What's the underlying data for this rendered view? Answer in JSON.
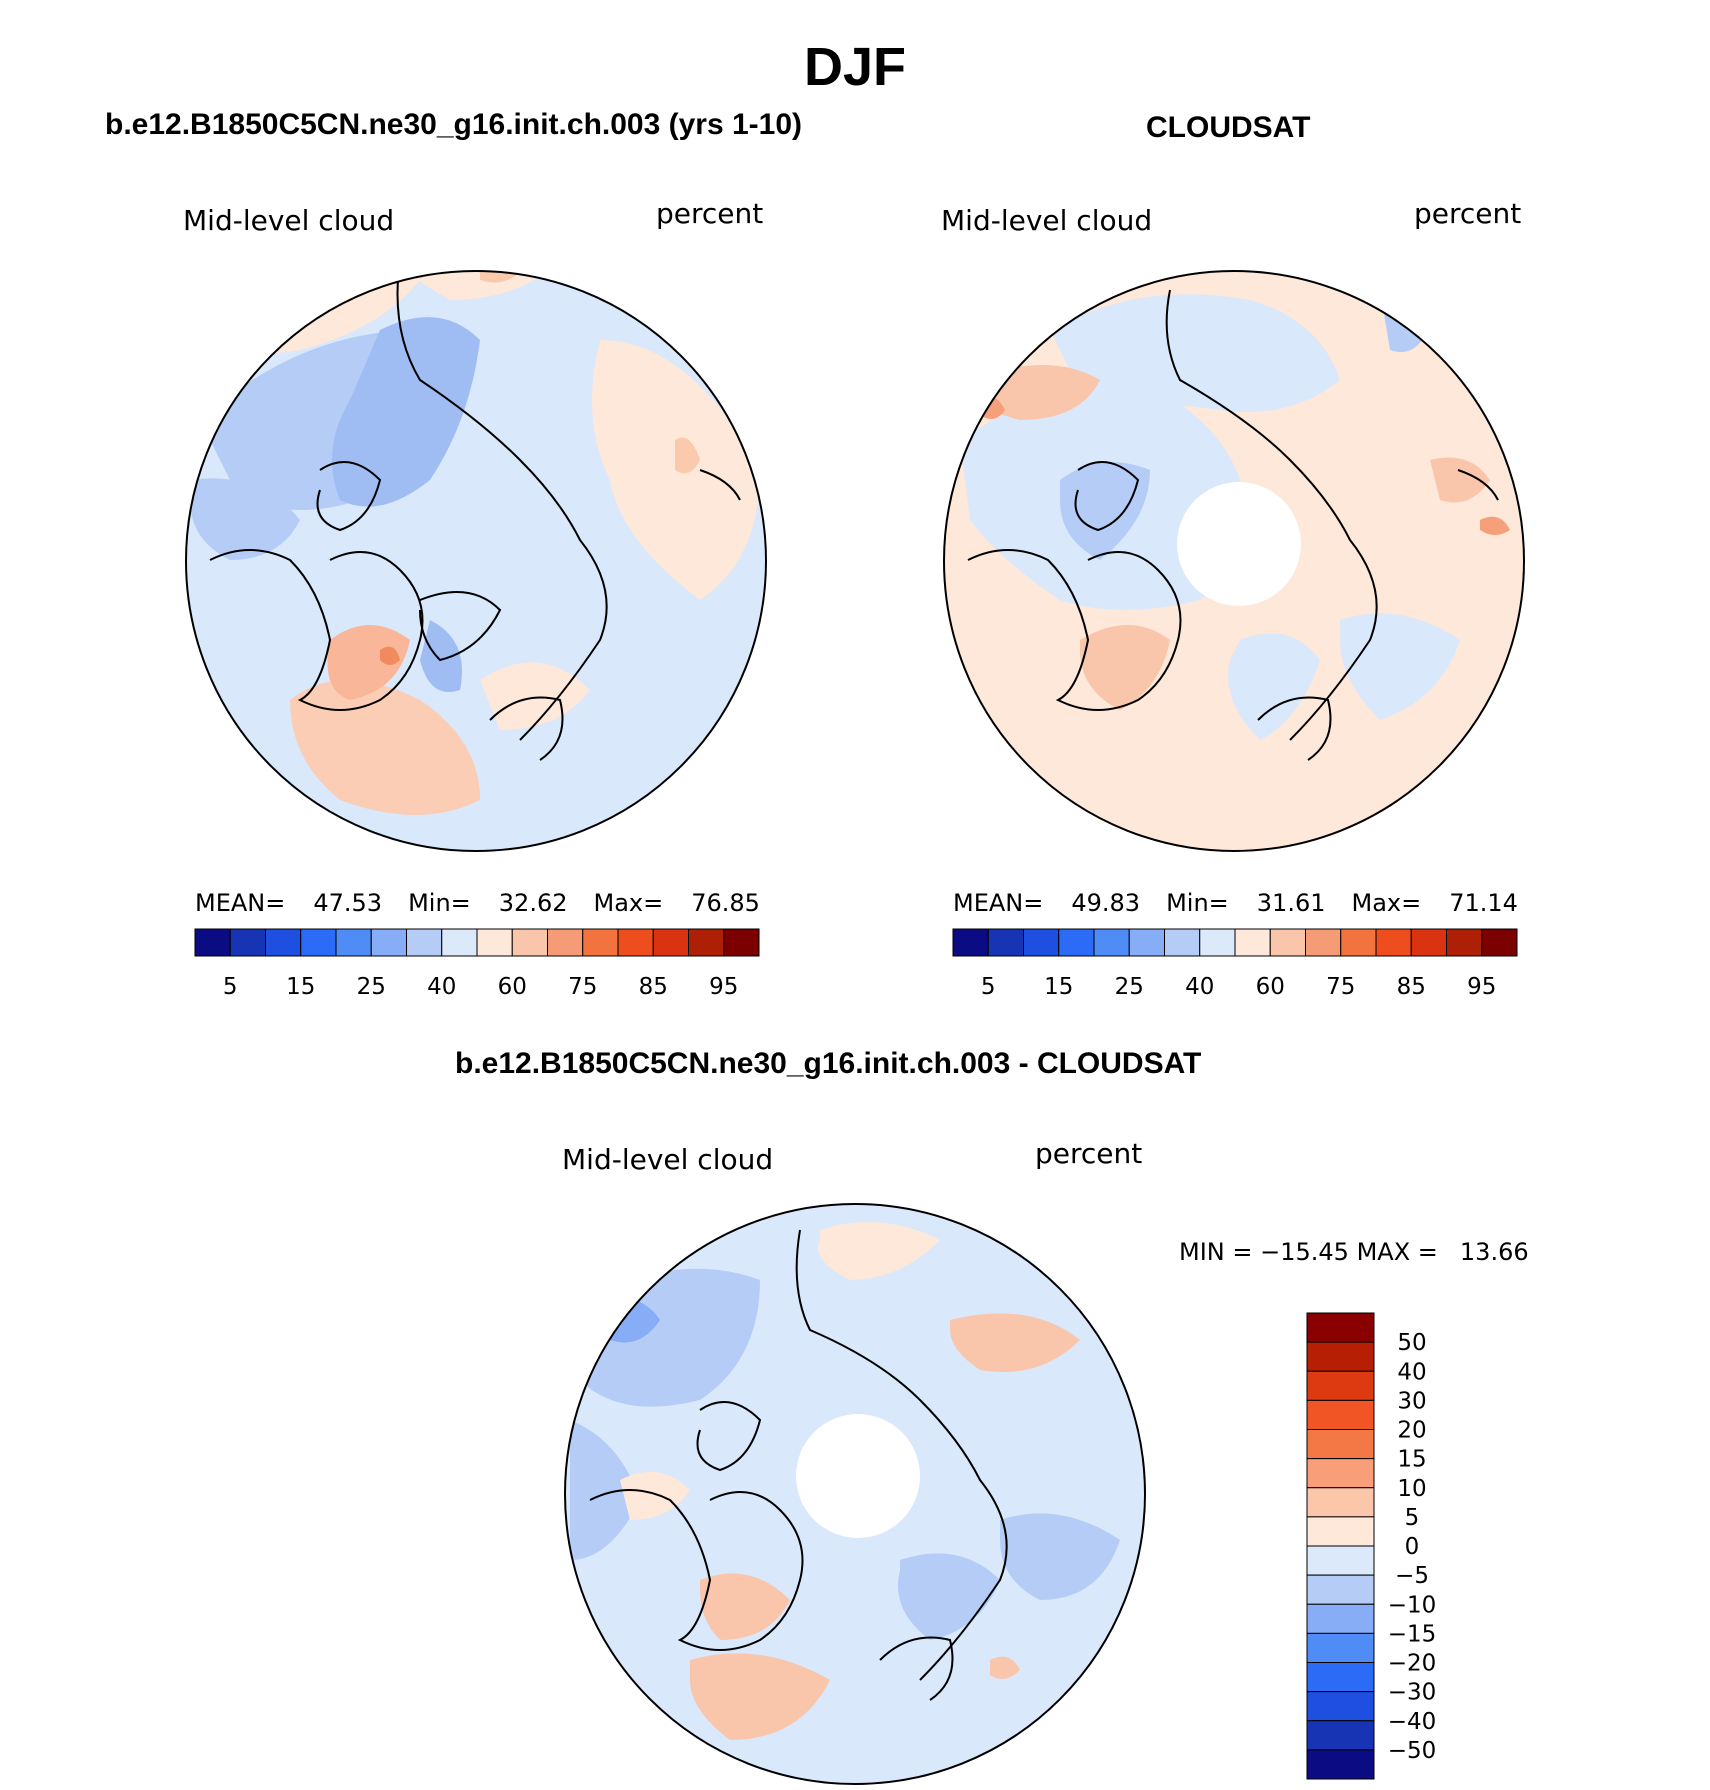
{
  "main_title": "DJF",
  "panels": [
    {
      "title": "b.e12.B1850C5CN.ne30_g16.init.ch.003 (yrs 1-10)",
      "variable": "Mid-level cloud",
      "units": "percent",
      "stats": {
        "mean_label": "MEAN=",
        "mean": "47.53",
        "min_label": "Min=",
        "min": "32.62",
        "max_label": "Max=",
        "max": "76.85"
      }
    },
    {
      "title": "CLOUDSAT",
      "variable": "Mid-level cloud",
      "units": "percent",
      "stats": {
        "mean_label": "MEAN=",
        "mean": "49.83",
        "min_label": "Min=",
        "min": "31.61",
        "max_label": "Max=",
        "max": "71.14"
      }
    }
  ],
  "diff_panel": {
    "title": "b.e12.B1850C5CN.ne30_g16.init.ch.003 - CLOUDSAT",
    "variable": "Mid-level cloud",
    "units": "percent",
    "min_label": "MIN =",
    "min": "−15.45",
    "max_label": "MAX =",
    "max": "13.66"
  },
  "chart_data": [
    {
      "type": "heatmap",
      "projection": "north polar stereographic",
      "title": "b.e12.B1850C5CN.ne30_g16.init.ch.003 (yrs 1-10)",
      "colorbar_orientation": "horizontal",
      "colorbar_tick_labels": [
        "5",
        "15",
        "25",
        "40",
        "60",
        "75",
        "85",
        "95"
      ],
      "colorbar_colors": [
        "#0b0b84",
        "#1634b4",
        "#1f4fe0",
        "#2c6bf5",
        "#4f8cf6",
        "#86adf5",
        "#b5cdf6",
        "#dbe9fb",
        "#fde8da",
        "#f9c6ac",
        "#f59b76",
        "#f3733e",
        "#ee4d1d",
        "#d93311",
        "#ad2006",
        "#7c0000"
      ],
      "stats": {
        "mean": 47.53,
        "min": 32.62,
        "max": 76.85
      }
    },
    {
      "type": "heatmap",
      "projection": "north polar stereographic",
      "title": "CLOUDSAT",
      "colorbar_orientation": "horizontal",
      "colorbar_tick_labels": [
        "5",
        "15",
        "25",
        "40",
        "60",
        "75",
        "85",
        "95"
      ],
      "colorbar_colors": [
        "#0b0b84",
        "#1634b4",
        "#1f4fe0",
        "#2c6bf5",
        "#4f8cf6",
        "#86adf5",
        "#b5cdf6",
        "#dbe9fb",
        "#fde8da",
        "#f9c6ac",
        "#f59b76",
        "#f3733e",
        "#ee4d1d",
        "#d93311",
        "#ad2006",
        "#7c0000"
      ],
      "stats": {
        "mean": 49.83,
        "min": 31.61,
        "max": 71.14
      }
    },
    {
      "type": "heatmap",
      "projection": "north polar stereographic",
      "title": "b.e12.B1850C5CN.ne30_g16.init.ch.003 - CLOUDSAT",
      "colorbar_orientation": "vertical",
      "colorbar_tick_labels": [
        "50",
        "40",
        "30",
        "20",
        "15",
        "10",
        "5",
        "0",
        "−5",
        "−10",
        "−15",
        "−20",
        "−30",
        "−40",
        "−50"
      ],
      "colorbar_colors": [
        "#8a0000",
        "#b71f05",
        "#dd3a12",
        "#f15526",
        "#f47746",
        "#f89e79",
        "#fbc6a9",
        "#fde8da",
        "#dbe9fb",
        "#b5cdf6",
        "#86adf5",
        "#4f8cf6",
        "#2c6bf5",
        "#1f4fe0",
        "#1634b4",
        "#0b0b84"
      ],
      "stats": {
        "min": -15.45,
        "max": 13.66
      }
    }
  ]
}
